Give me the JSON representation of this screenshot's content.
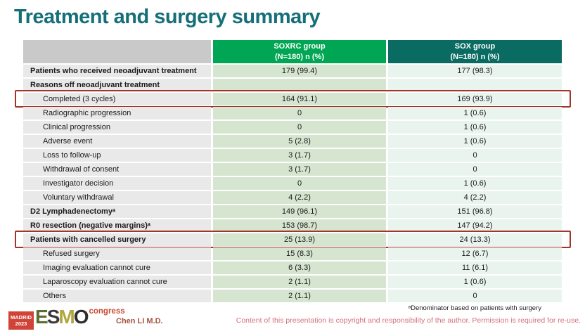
{
  "slide": {
    "title": "Treatment and surgery summary",
    "presenter": "Chen LI M.D."
  },
  "footer": {
    "footnote": "ᵃDenominator based on patients with surgery",
    "copyright": "Content of this presentation is copyright and responsibility of the author. Permission is required for re-use."
  },
  "logo": {
    "madrid_line1": "MADRID",
    "madrid_line2": "2023",
    "esmo_letters": [
      "E",
      "S",
      "M",
      "O"
    ],
    "event": "congress"
  },
  "colors": {
    "title_teal": "#156f78",
    "header_green": "#00a653",
    "header_teal": "#0a6b62",
    "header_gray": "#c9c9c9",
    "label_cell_bg": "#e9e9e9",
    "soxrc_cell_bg": "#d6e5d0",
    "sox_cell_bg": "#eaf4ef",
    "highlight_red": "#a3342c",
    "copyright_pink": "#d4717f",
    "presenter_red": "#a6523e",
    "logo_red": "#cf4437"
  },
  "table": {
    "header": {
      "group1_line1": "SOXRC group",
      "group1_line2": "(N=180) n (%)",
      "group2_line1": "SOX group",
      "group2_line2": "(N=180) n (%)"
    },
    "rows": [
      {
        "label": "Patients who received neoadjuvant treatment",
        "indent": false,
        "bold": true,
        "soxrc": "179 (99.4)",
        "sox": "177 (98.3)",
        "highlight": false
      },
      {
        "label": "Reasons off neoadjuvant treatment",
        "indent": false,
        "bold": true,
        "soxrc": "",
        "sox": "",
        "highlight": false
      },
      {
        "label": "Completed (3 cycles)",
        "indent": true,
        "bold": false,
        "soxrc": "164 (91.1)",
        "sox": "169 (93.9)",
        "highlight": true
      },
      {
        "label": "Radiographic progression",
        "indent": true,
        "bold": false,
        "soxrc": "0",
        "sox": "1 (0.6)",
        "highlight": false
      },
      {
        "label": "Clinical progression",
        "indent": true,
        "bold": false,
        "soxrc": "0",
        "sox": "1 (0.6)",
        "highlight": false
      },
      {
        "label": "Adverse event",
        "indent": true,
        "bold": false,
        "soxrc": "5 (2.8)",
        "sox": "1 (0.6)",
        "highlight": false
      },
      {
        "label": "Loss to follow-up",
        "indent": true,
        "bold": false,
        "soxrc": "3 (1.7)",
        "sox": "0",
        "highlight": false
      },
      {
        "label": "Withdrawal of consent",
        "indent": true,
        "bold": false,
        "soxrc": "3 (1.7)",
        "sox": "0",
        "highlight": false
      },
      {
        "label": "Investigator decision",
        "indent": true,
        "bold": false,
        "soxrc": "0",
        "sox": "1 (0.6)",
        "highlight": false
      },
      {
        "label": "Voluntary withdrawal",
        "indent": true,
        "bold": false,
        "soxrc": "4 (2.2)",
        "sox": "4 (2.2)",
        "highlight": false
      },
      {
        "label": "D2 Lymphadenectomyᵃ",
        "indent": false,
        "bold": true,
        "soxrc": "149 (96.1)",
        "sox": "151 (96.8)",
        "highlight": false
      },
      {
        "label": "R0 resection (negative margins)ᵃ",
        "indent": false,
        "bold": true,
        "soxrc": "153 (98.7)",
        "sox": "147 (94.2)",
        "highlight": false
      },
      {
        "label": "Patients with cancelled surgery",
        "indent": false,
        "bold": true,
        "soxrc": "25 (13.9)",
        "sox": "24 (13.3)",
        "highlight": true
      },
      {
        "label": "Refused surgery",
        "indent": true,
        "bold": false,
        "soxrc": "15 (8.3)",
        "sox": "12 (6.7)",
        "highlight": false
      },
      {
        "label": "Imaging evaluation cannot cure",
        "indent": true,
        "bold": false,
        "soxrc": "6 (3.3)",
        "sox": "11 (6.1)",
        "highlight": false
      },
      {
        "label": "Laparoscopy evaluation cannot cure",
        "indent": true,
        "bold": false,
        "soxrc": "2 (1.1)",
        "sox": "1 (0.6)",
        "highlight": false
      },
      {
        "label": "Others",
        "indent": true,
        "bold": false,
        "soxrc": "2 (1.1)",
        "sox": "0",
        "highlight": false
      }
    ]
  }
}
